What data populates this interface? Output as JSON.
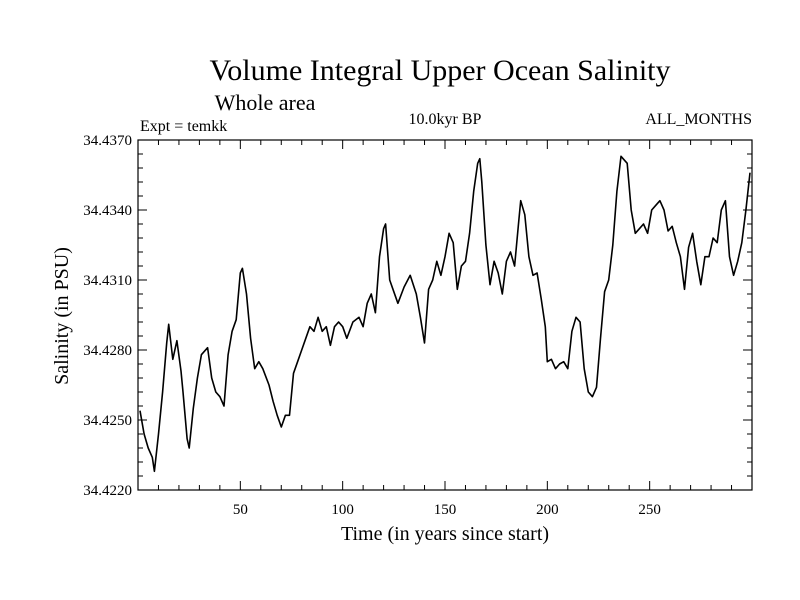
{
  "chart_data": {
    "type": "line",
    "title": "Volume Integral Upper Ocean Salinity",
    "subtitle": "Whole area",
    "experiment_label": "Expt = temkk",
    "period_label": "10.0kyr BP",
    "months_label": "ALL_MONTHS",
    "xlabel": "Time (in years since start)",
    "ylabel": "Salinity (in PSU)",
    "xlim": [
      0,
      300
    ],
    "ylim": [
      34.422,
      34.437
    ],
    "xticks_major": [
      50,
      100,
      150,
      200,
      250
    ],
    "xticks_minor_step": 10,
    "yticks_major": [
      "34.4220",
      "34.4250",
      "34.4280",
      "34.4310",
      "34.4340",
      "34.4370"
    ],
    "yticks_minor_step": 0.0006,
    "grid": false,
    "series": [
      {
        "name": "Salinity",
        "color": "#000000",
        "x": [
          1,
          3,
          5,
          7,
          8,
          10,
          12,
          14,
          15,
          17,
          19,
          21,
          22,
          24,
          25,
          27,
          29,
          31,
          34,
          36,
          38,
          40,
          42,
          44,
          46,
          48,
          50,
          51,
          53,
          55,
          57,
          59,
          61,
          64,
          66,
          68,
          70,
          72,
          74,
          76,
          78,
          80,
          82,
          84,
          86,
          88,
          90,
          92,
          94,
          96,
          98,
          100,
          102,
          105,
          108,
          110,
          112,
          114,
          116,
          118,
          120,
          121,
          123,
          125,
          127,
          130,
          133,
          136,
          138,
          140,
          142,
          144,
          146,
          148,
          150,
          152,
          154,
          156,
          158,
          160,
          162,
          164,
          166,
          167,
          168,
          170,
          172,
          174,
          176,
          178,
          180,
          182,
          184,
          186,
          187,
          189,
          191,
          193,
          195,
          197,
          199,
          200,
          202,
          204,
          206,
          208,
          210,
          212,
          214,
          216,
          218,
          220,
          222,
          224,
          226,
          228,
          230,
          232,
          234,
          236,
          237,
          239,
          241,
          243,
          245,
          247,
          249,
          251,
          253,
          255,
          257,
          259,
          261,
          263,
          265,
          267,
          269,
          271,
          273,
          275,
          277,
          279,
          281,
          283,
          285,
          287,
          289,
          291,
          293,
          295,
          297,
          299
        ],
        "values": [
          34.4254,
          34.4244,
          34.4238,
          34.4234,
          34.4228,
          34.4244,
          34.4262,
          34.4283,
          34.4291,
          34.4276,
          34.4284,
          34.4271,
          34.4262,
          34.4242,
          34.4238,
          34.4255,
          34.4268,
          34.4278,
          34.4281,
          34.4268,
          34.4262,
          34.426,
          34.4256,
          34.4278,
          34.4288,
          34.4293,
          34.4313,
          34.4315,
          34.4304,
          34.4285,
          34.4272,
          34.4275,
          34.4272,
          34.4265,
          34.4258,
          34.4252,
          34.4247,
          34.4252,
          34.4252,
          34.427,
          34.4275,
          34.428,
          34.4285,
          34.429,
          34.4288,
          34.4294,
          34.4288,
          34.429,
          34.4282,
          34.429,
          34.4292,
          34.429,
          34.4285,
          34.4292,
          34.4294,
          34.429,
          34.43,
          34.4304,
          34.4296,
          34.432,
          34.4332,
          34.4334,
          34.431,
          34.4305,
          34.43,
          34.4307,
          34.4312,
          34.4304,
          34.4294,
          34.4283,
          34.4306,
          34.431,
          34.4318,
          34.4312,
          34.432,
          34.433,
          34.4326,
          34.4306,
          34.4316,
          34.4318,
          34.433,
          34.4348,
          34.436,
          34.4362,
          34.4352,
          34.4325,
          34.4308,
          34.4318,
          34.4313,
          34.4304,
          34.4318,
          34.4322,
          34.4316,
          34.4335,
          34.4344,
          34.4338,
          34.432,
          34.4312,
          34.4313,
          34.4302,
          34.429,
          34.4275,
          34.4276,
          34.4272,
          34.4274,
          34.4275,
          34.4272,
          34.4288,
          34.4294,
          34.4292,
          34.4272,
          34.4262,
          34.426,
          34.4264,
          34.4285,
          34.4305,
          34.431,
          34.4325,
          34.4348,
          34.4363,
          34.4362,
          34.436,
          34.434,
          34.433,
          34.4332,
          34.4334,
          34.433,
          34.434,
          34.4342,
          34.4344,
          34.434,
          34.4331,
          34.4333,
          34.4326,
          34.432,
          34.4306,
          34.4324,
          34.433,
          34.4318,
          34.4308,
          34.432,
          34.432,
          34.4328,
          34.4326,
          34.434,
          34.4344,
          34.432,
          34.4312,
          34.4318,
          34.4326,
          34.434,
          34.4356
        ]
      }
    ]
  }
}
